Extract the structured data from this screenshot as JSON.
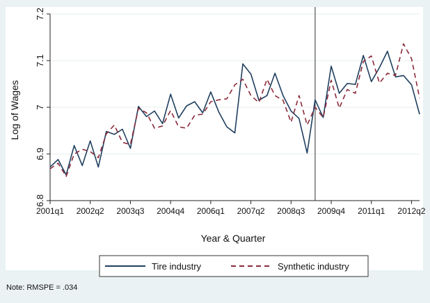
{
  "chart_data": {
    "type": "line",
    "xlabel": "Year & Quarter",
    "ylabel": "Log of Wages",
    "ylim": [
      6.8,
      7.2
    ],
    "y_ticks": [
      "6.8",
      "6.9",
      "7",
      "7.1",
      "7.2"
    ],
    "x_tick_labels": [
      "2001q1",
      "2002q2",
      "2003q3",
      "2004q4",
      "2006q1",
      "2007q2",
      "2008q3",
      "2009q4",
      "2011q1",
      "2012q2"
    ],
    "x_tick_indices": [
      0,
      5,
      10,
      15,
      20,
      25,
      30,
      35,
      40,
      45
    ],
    "x": [
      "2001q1",
      "2001q2",
      "2001q3",
      "2001q4",
      "2002q1",
      "2002q2",
      "2002q3",
      "2002q4",
      "2003q1",
      "2003q2",
      "2003q3",
      "2003q4",
      "2004q1",
      "2004q2",
      "2004q3",
      "2004q4",
      "2005q1",
      "2005q2",
      "2005q3",
      "2005q4",
      "2006q1",
      "2006q2",
      "2006q3",
      "2006q4",
      "2007q1",
      "2007q2",
      "2007q3",
      "2007q4",
      "2008q1",
      "2008q2",
      "2008q3",
      "2008q4",
      "2009q1",
      "2009q2",
      "2009q3",
      "2009q4",
      "2010q1",
      "2010q2",
      "2010q3",
      "2010q4",
      "2011q1",
      "2011q2",
      "2011q3",
      "2011q4",
      "2012q1",
      "2012q2",
      "2012q3"
    ],
    "vline_x": "2009q2",
    "series": [
      {
        "name": "Tire industry",
        "color": "#1f3f5e",
        "style": "solid",
        "values": [
          6.872,
          6.888,
          6.855,
          6.918,
          6.875,
          6.928,
          6.872,
          6.948,
          6.942,
          6.953,
          6.912,
          7.002,
          6.98,
          6.992,
          6.965,
          7.028,
          6.977,
          7.003,
          7.012,
          6.988,
          7.033,
          6.99,
          6.958,
          6.945,
          7.093,
          7.071,
          7.015,
          7.025,
          7.073,
          7.025,
          6.992,
          6.976,
          6.902,
          7.016,
          6.978,
          7.088,
          7.03,
          7.051,
          7.049,
          7.111,
          7.055,
          7.085,
          7.12,
          7.065,
          7.068,
          7.048,
          6.985
        ]
      },
      {
        "name": "Synthetic industry",
        "color": "#8b2a3a",
        "style": "dashed",
        "values": [
          6.868,
          6.88,
          6.852,
          6.9,
          6.91,
          6.905,
          6.892,
          6.943,
          6.962,
          6.925,
          6.92,
          6.998,
          6.988,
          6.955,
          6.96,
          6.993,
          6.958,
          6.955,
          6.983,
          6.985,
          7.012,
          7.016,
          7.018,
          7.048,
          7.06,
          7.025,
          7.01,
          7.06,
          7.025,
          7.015,
          6.968,
          7.025,
          6.962,
          7.0,
          6.978,
          7.058,
          6.998,
          7.038,
          7.03,
          7.098,
          7.11,
          7.052,
          7.073,
          7.068,
          7.136,
          7.104,
          7.02
        ]
      }
    ]
  },
  "note": "Note: RMSPE = .034"
}
